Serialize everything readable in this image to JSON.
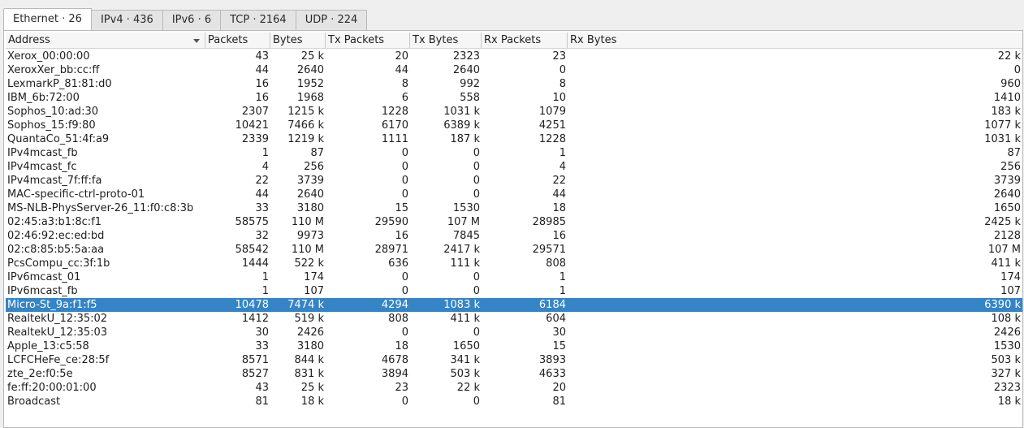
{
  "tabs": [
    {
      "label": "Ethernet · 26",
      "active": true
    },
    {
      "label": "IPv4 · 436",
      "active": false
    },
    {
      "label": "IPv6 · 6",
      "active": false
    },
    {
      "label": "TCP · 2164",
      "active": false
    },
    {
      "label": "UDP · 224",
      "active": false
    }
  ],
  "columns": [
    "Address",
    "Packets",
    "Bytes",
    "Tx Packets",
    "Tx Bytes",
    "Rx Packets",
    "Rx Bytes"
  ],
  "sort": {
    "column": "Address",
    "icon": "sort-descending-icon"
  },
  "selected_index": 18,
  "colors": {
    "selection": "#3584c6",
    "selection_text": "#ffffff"
  },
  "rows": [
    [
      "Xerox_00:00:00",
      "43",
      "25 k",
      "20",
      "2323",
      "23",
      "22 k"
    ],
    [
      "XeroxXer_bb:cc:ff",
      "44",
      "2640",
      "44",
      "2640",
      "0",
      "0"
    ],
    [
      "LexmarkP_81:81:d0",
      "16",
      "1952",
      "8",
      "992",
      "8",
      "960"
    ],
    [
      "IBM_6b:72:00",
      "16",
      "1968",
      "6",
      "558",
      "10",
      "1410"
    ],
    [
      "Sophos_10:ad:30",
      "2307",
      "1215 k",
      "1228",
      "1031 k",
      "1079",
      "183 k"
    ],
    [
      "Sophos_15:f9:80",
      "10421",
      "7466 k",
      "6170",
      "6389 k",
      "4251",
      "1077 k"
    ],
    [
      "QuantaCo_51:4f:a9",
      "2339",
      "1219 k",
      "1111",
      "187 k",
      "1228",
      "1031 k"
    ],
    [
      "IPv4mcast_fb",
      "1",
      "87",
      "0",
      "0",
      "1",
      "87"
    ],
    [
      "IPv4mcast_fc",
      "4",
      "256",
      "0",
      "0",
      "4",
      "256"
    ],
    [
      "IPv4mcast_7f:ff:fa",
      "22",
      "3739",
      "0",
      "0",
      "22",
      "3739"
    ],
    [
      "MAC-specific-ctrl-proto-01",
      "44",
      "2640",
      "0",
      "0",
      "44",
      "2640"
    ],
    [
      "MS-NLB-PhysServer-26_11:f0:c8:3b",
      "33",
      "3180",
      "15",
      "1530",
      "18",
      "1650"
    ],
    [
      "02:45:a3:b1:8c:f1",
      "58575",
      "110 M",
      "29590",
      "107 M",
      "28985",
      "2425 k"
    ],
    [
      "02:46:92:ec:ed:bd",
      "32",
      "9973",
      "16",
      "7845",
      "16",
      "2128"
    ],
    [
      "02:c8:85:b5:5a:aa",
      "58542",
      "110 M",
      "28971",
      "2417 k",
      "29571",
      "107 M"
    ],
    [
      "PcsCompu_cc:3f:1b",
      "1444",
      "522 k",
      "636",
      "111 k",
      "808",
      "411 k"
    ],
    [
      "IPv6mcast_01",
      "1",
      "174",
      "0",
      "0",
      "1",
      "174"
    ],
    [
      "IPv6mcast_fb",
      "1",
      "107",
      "0",
      "0",
      "1",
      "107"
    ],
    [
      "Micro-St_9a:f1:f5",
      "10478",
      "7474 k",
      "4294",
      "1083 k",
      "6184",
      "6390 k"
    ],
    [
      "RealtekU_12:35:02",
      "1412",
      "519 k",
      "808",
      "411 k",
      "604",
      "108 k"
    ],
    [
      "RealtekU_12:35:03",
      "30",
      "2426",
      "0",
      "0",
      "30",
      "2426"
    ],
    [
      "Apple_13:c5:58",
      "33",
      "3180",
      "18",
      "1650",
      "15",
      "1530"
    ],
    [
      "LCFCHeFe_ce:28:5f",
      "8571",
      "844 k",
      "4678",
      "341 k",
      "3893",
      "503 k"
    ],
    [
      "zte_2e:f0:5e",
      "8527",
      "831 k",
      "3894",
      "503 k",
      "4633",
      "327 k"
    ],
    [
      "fe:ff:20:00:01:00",
      "43",
      "25 k",
      "23",
      "22 k",
      "20",
      "2323"
    ],
    [
      "Broadcast",
      "81",
      "18 k",
      "0",
      "0",
      "81",
      "18 k"
    ]
  ]
}
